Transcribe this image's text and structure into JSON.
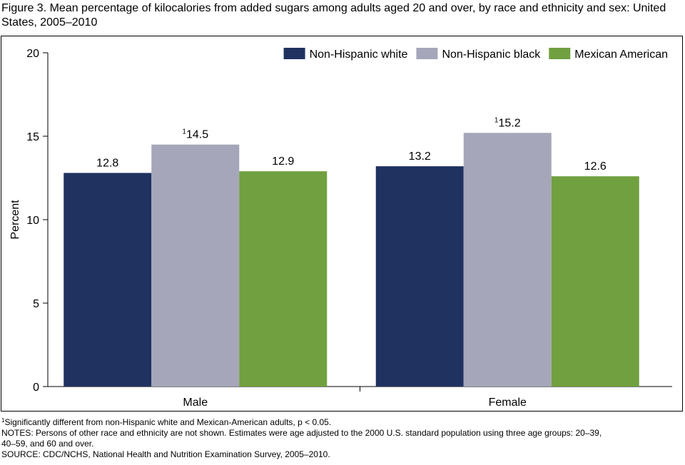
{
  "figure": {
    "title": "Figure 3. Mean percentage of kilocalories from added sugars among adults aged 20 and over, by race and ethnicity and sex: United States, 2005–2010"
  },
  "chart_data": {
    "type": "bar",
    "categories": [
      "Male",
      "Female"
    ],
    "series": [
      {
        "name": "Non-Hispanic white",
        "values": [
          12.8,
          13.2
        ],
        "color": "#1f3260",
        "labels": [
          "12.8",
          "13.2"
        ],
        "footnote_marks": [
          "",
          ""
        ]
      },
      {
        "name": "Non-Hispanic black",
        "values": [
          14.5,
          15.2
        ],
        "color": "#a6a6ba",
        "labels": [
          "14.5",
          "15.2"
        ],
        "footnote_marks": [
          "1",
          "1"
        ]
      },
      {
        "name": "Mexican American",
        "values": [
          12.9,
          12.6
        ],
        "color": "#70a040",
        "labels": [
          "12.9",
          "12.6"
        ],
        "footnote_marks": [
          "",
          ""
        ]
      }
    ],
    "ylabel": "Percent",
    "xlabel": "",
    "ylim": [
      0,
      20
    ],
    "yticks": [
      0,
      5,
      10,
      15,
      20
    ],
    "ytick_labels": [
      "0",
      "5",
      "10",
      "15",
      "20"
    ],
    "grid": false,
    "legend_position": "top-right"
  },
  "notes": {
    "footnote_mark": "1",
    "footnote_text": "Significantly different from non-Hispanic white and Mexican-American adults, p < 0.05.",
    "notes_line1": "NOTES: Persons of other race and ethnicity are not shown. Estimates were age adjusted to the 2000 U.S. standard population using three age groups: 20–39,",
    "notes_line2": "40–59, and 60 and over.",
    "source": "SOURCE: CDC/NCHS, National Health and Nutrition Examination Survey, 2005–2010."
  }
}
